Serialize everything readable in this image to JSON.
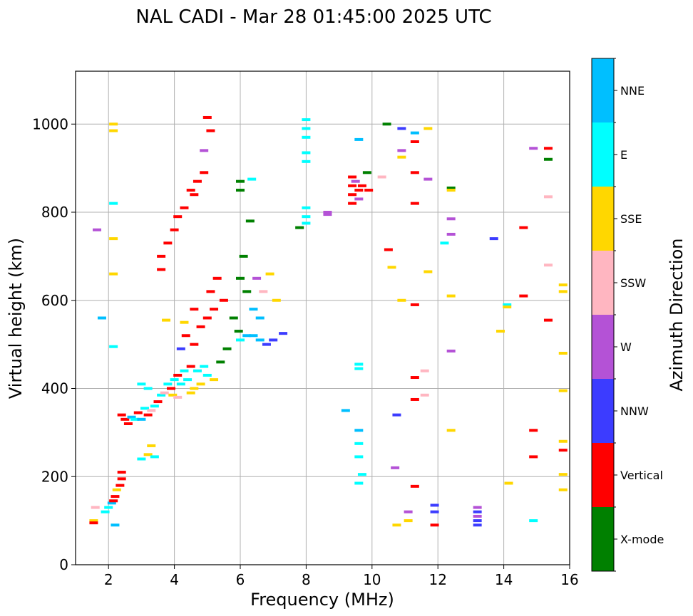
{
  "chart_data": {
    "type": "scatter",
    "title": "NAL CADI - Mar 28 01:45:00 2025 UTC",
    "xlabel": "Frequency (MHz)",
    "ylabel": "Virtual height (km)",
    "xlim": [
      1,
      16
    ],
    "ylim": [
      0,
      1120
    ],
    "xticks": [
      2,
      4,
      6,
      8,
      10,
      12,
      14,
      16
    ],
    "yticks": [
      0,
      200,
      400,
      600,
      800,
      1000
    ],
    "grid": true,
    "colorbar": {
      "label": "Azimuth Direction",
      "categories": [
        {
          "name": "X-mode",
          "color": "#008000"
        },
        {
          "name": "Vertical",
          "color": "#ff0000"
        },
        {
          "name": "NNW",
          "color": "#3c3cff"
        },
        {
          "name": "W",
          "color": "#b452d6"
        },
        {
          "name": "SSW",
          "color": "#ffb6c1"
        },
        {
          "name": "SSE",
          "color": "#ffd700"
        },
        {
          "name": "E",
          "color": "#00ffff"
        },
        {
          "name": "NNE",
          "color": "#00bfff"
        }
      ]
    },
    "points": [
      {
        "f": 1.55,
        "h": 100,
        "dir": "SSE"
      },
      {
        "f": 1.55,
        "h": 95,
        "dir": "Vertical"
      },
      {
        "f": 1.6,
        "h": 130,
        "dir": "SSW"
      },
      {
        "f": 1.65,
        "h": 760,
        "dir": "W"
      },
      {
        "f": 1.9,
        "h": 120,
        "dir": "E"
      },
      {
        "f": 2.0,
        "h": 130,
        "dir": "E"
      },
      {
        "f": 2.1,
        "h": 140,
        "dir": "NNE"
      },
      {
        "f": 2.15,
        "h": 145,
        "dir": "Vertical"
      },
      {
        "f": 2.2,
        "h": 155,
        "dir": "Vertical"
      },
      {
        "f": 2.25,
        "h": 170,
        "dir": "SSE"
      },
      {
        "f": 2.35,
        "h": 180,
        "dir": "Vertical"
      },
      {
        "f": 2.4,
        "h": 195,
        "dir": "Vertical"
      },
      {
        "f": 2.4,
        "h": 210,
        "dir": "Vertical"
      },
      {
        "f": 2.15,
        "h": 1000,
        "dir": "SSE"
      },
      {
        "f": 2.15,
        "h": 985,
        "dir": "SSE"
      },
      {
        "f": 2.15,
        "h": 820,
        "dir": "E"
      },
      {
        "f": 2.15,
        "h": 740,
        "dir": "SSE"
      },
      {
        "f": 2.15,
        "h": 660,
        "dir": "SSE"
      },
      {
        "f": 2.15,
        "h": 495,
        "dir": "E"
      },
      {
        "f": 2.2,
        "h": 90,
        "dir": "NNE"
      },
      {
        "f": 2.4,
        "h": 340,
        "dir": "Vertical"
      },
      {
        "f": 2.5,
        "h": 330,
        "dir": "Vertical"
      },
      {
        "f": 2.6,
        "h": 320,
        "dir": "Vertical"
      },
      {
        "f": 2.7,
        "h": 335,
        "dir": "NNE"
      },
      {
        "f": 2.8,
        "h": 330,
        "dir": "E"
      },
      {
        "f": 2.9,
        "h": 345,
        "dir": "Vertical"
      },
      {
        "f": 3.0,
        "h": 330,
        "dir": "NNE"
      },
      {
        "f": 3.1,
        "h": 355,
        "dir": "E"
      },
      {
        "f": 3.2,
        "h": 340,
        "dir": "Vertical"
      },
      {
        "f": 3.3,
        "h": 350,
        "dir": "SSW"
      },
      {
        "f": 3.4,
        "h": 360,
        "dir": "E"
      },
      {
        "f": 3.5,
        "h": 370,
        "dir": "Vertical"
      },
      {
        "f": 3.6,
        "h": 385,
        "dir": "E"
      },
      {
        "f": 3.7,
        "h": 390,
        "dir": "SSW"
      },
      {
        "f": 3.0,
        "h": 410,
        "dir": "E"
      },
      {
        "f": 3.2,
        "h": 400,
        "dir": "E"
      },
      {
        "f": 3.0,
        "h": 240,
        "dir": "E"
      },
      {
        "f": 3.2,
        "h": 250,
        "dir": "SSE"
      },
      {
        "f": 3.3,
        "h": 270,
        "dir": "SSE"
      },
      {
        "f": 3.4,
        "h": 245,
        "dir": "E"
      },
      {
        "f": 3.8,
        "h": 410,
        "dir": "E"
      },
      {
        "f": 3.9,
        "h": 400,
        "dir": "Vertical"
      },
      {
        "f": 4.0,
        "h": 420,
        "dir": "E"
      },
      {
        "f": 4.1,
        "h": 430,
        "dir": "Vertical"
      },
      {
        "f": 4.2,
        "h": 410,
        "dir": "E"
      },
      {
        "f": 4.3,
        "h": 440,
        "dir": "E"
      },
      {
        "f": 4.4,
        "h": 420,
        "dir": "E"
      },
      {
        "f": 4.5,
        "h": 450,
        "dir": "Vertical"
      },
      {
        "f": 4.6,
        "h": 400,
        "dir": "SSE"
      },
      {
        "f": 4.7,
        "h": 440,
        "dir": "E"
      },
      {
        "f": 4.8,
        "h": 410,
        "dir": "SSE"
      },
      {
        "f": 4.9,
        "h": 450,
        "dir": "E"
      },
      {
        "f": 5.0,
        "h": 430,
        "dir": "E"
      },
      {
        "f": 3.95,
        "h": 385,
        "dir": "SSE"
      },
      {
        "f": 4.1,
        "h": 380,
        "dir": "SSW"
      },
      {
        "f": 4.5,
        "h": 390,
        "dir": "SSE"
      },
      {
        "f": 5.2,
        "h": 420,
        "dir": "SSE"
      },
      {
        "f": 5.4,
        "h": 460,
        "dir": "X-mode"
      },
      {
        "f": 5.6,
        "h": 490,
        "dir": "X-mode"
      },
      {
        "f": 4.2,
        "h": 490,
        "dir": "NNW"
      },
      {
        "f": 4.35,
        "h": 520,
        "dir": "Vertical"
      },
      {
        "f": 4.6,
        "h": 500,
        "dir": "Vertical"
      },
      {
        "f": 4.8,
        "h": 540,
        "dir": "Vertical"
      },
      {
        "f": 5.0,
        "h": 560,
        "dir": "Vertical"
      },
      {
        "f": 5.1,
        "h": 620,
        "dir": "Vertical"
      },
      {
        "f": 5.2,
        "h": 580,
        "dir": "Vertical"
      },
      {
        "f": 5.3,
        "h": 650,
        "dir": "Vertical"
      },
      {
        "f": 5.5,
        "h": 600,
        "dir": "Vertical"
      },
      {
        "f": 5.8,
        "h": 560,
        "dir": "X-mode"
      },
      {
        "f": 5.95,
        "h": 530,
        "dir": "X-mode"
      },
      {
        "f": 6.0,
        "h": 510,
        "dir": "E"
      },
      {
        "f": 6.2,
        "h": 520,
        "dir": "NNE"
      },
      {
        "f": 6.4,
        "h": 520,
        "dir": "NNE"
      },
      {
        "f": 6.6,
        "h": 510,
        "dir": "NNE"
      },
      {
        "f": 6.8,
        "h": 500,
        "dir": "NNW"
      },
      {
        "f": 7.0,
        "h": 510,
        "dir": "NNW"
      },
      {
        "f": 7.3,
        "h": 525,
        "dir": "NNW"
      },
      {
        "f": 6.0,
        "h": 650,
        "dir": "X-mode"
      },
      {
        "f": 6.2,
        "h": 620,
        "dir": "X-mode"
      },
      {
        "f": 6.1,
        "h": 700,
        "dir": "X-mode"
      },
      {
        "f": 6.3,
        "h": 780,
        "dir": "X-mode"
      },
      {
        "f": 6.5,
        "h": 650,
        "dir": "W"
      },
      {
        "f": 6.7,
        "h": 620,
        "dir": "SSW"
      },
      {
        "f": 6.9,
        "h": 660,
        "dir": "SSE"
      },
      {
        "f": 7.1,
        "h": 600,
        "dir": "SSE"
      },
      {
        "f": 6.4,
        "h": 580,
        "dir": "NNE"
      },
      {
        "f": 6.6,
        "h": 560,
        "dir": "NNE"
      },
      {
        "f": 6.35,
        "h": 875,
        "dir": "E"
      },
      {
        "f": 6.0,
        "h": 870,
        "dir": "X-mode"
      },
      {
        "f": 6.0,
        "h": 850,
        "dir": "X-mode"
      },
      {
        "f": 3.6,
        "h": 700,
        "dir": "Vertical"
      },
      {
        "f": 3.6,
        "h": 670,
        "dir": "Vertical"
      },
      {
        "f": 3.8,
        "h": 730,
        "dir": "Vertical"
      },
      {
        "f": 4.0,
        "h": 760,
        "dir": "Vertical"
      },
      {
        "f": 4.1,
        "h": 790,
        "dir": "Vertical"
      },
      {
        "f": 4.3,
        "h": 810,
        "dir": "Vertical"
      },
      {
        "f": 4.5,
        "h": 850,
        "dir": "Vertical"
      },
      {
        "f": 4.7,
        "h": 870,
        "dir": "Vertical"
      },
      {
        "f": 4.9,
        "h": 890,
        "dir": "Vertical"
      },
      {
        "f": 4.6,
        "h": 840,
        "dir": "Vertical"
      },
      {
        "f": 4.9,
        "h": 940,
        "dir": "W"
      },
      {
        "f": 5.1,
        "h": 985,
        "dir": "Vertical"
      },
      {
        "f": 5.0,
        "h": 1015,
        "dir": "Vertical"
      },
      {
        "f": 3.75,
        "h": 555,
        "dir": "SSE"
      },
      {
        "f": 4.3,
        "h": 550,
        "dir": "SSE"
      },
      {
        "f": 4.6,
        "h": 580,
        "dir": "Vertical"
      },
      {
        "f": 8.0,
        "h": 1010,
        "dir": "E"
      },
      {
        "f": 8.0,
        "h": 990,
        "dir": "E"
      },
      {
        "f": 8.0,
        "h": 970,
        "dir": "E"
      },
      {
        "f": 8.0,
        "h": 935,
        "dir": "E"
      },
      {
        "f": 8.0,
        "h": 915,
        "dir": "E"
      },
      {
        "f": 8.0,
        "h": 810,
        "dir": "E"
      },
      {
        "f": 8.0,
        "h": 790,
        "dir": "E"
      },
      {
        "f": 8.0,
        "h": 775,
        "dir": "E"
      },
      {
        "f": 7.8,
        "h": 765,
        "dir": "X-mode"
      },
      {
        "f": 8.65,
        "h": 800,
        "dir": "W"
      },
      {
        "f": 8.65,
        "h": 795,
        "dir": "W"
      },
      {
        "f": 9.4,
        "h": 880,
        "dir": "Vertical"
      },
      {
        "f": 9.4,
        "h": 860,
        "dir": "Vertical"
      },
      {
        "f": 9.4,
        "h": 840,
        "dir": "Vertical"
      },
      {
        "f": 9.4,
        "h": 820,
        "dir": "Vertical"
      },
      {
        "f": 9.5,
        "h": 870,
        "dir": "W"
      },
      {
        "f": 9.6,
        "h": 850,
        "dir": "Vertical"
      },
      {
        "f": 9.6,
        "h": 830,
        "dir": "W"
      },
      {
        "f": 9.7,
        "h": 860,
        "dir": "Vertical"
      },
      {
        "f": 9.85,
        "h": 890,
        "dir": "X-mode"
      },
      {
        "f": 9.9,
        "h": 850,
        "dir": "Vertical"
      },
      {
        "f": 9.6,
        "h": 965,
        "dir": "NNE"
      },
      {
        "f": 9.2,
        "h": 350,
        "dir": "NNE"
      },
      {
        "f": 9.6,
        "h": 455,
        "dir": "E"
      },
      {
        "f": 9.6,
        "h": 445,
        "dir": "E"
      },
      {
        "f": 9.6,
        "h": 305,
        "dir": "NNE"
      },
      {
        "f": 9.6,
        "h": 275,
        "dir": "E"
      },
      {
        "f": 9.6,
        "h": 245,
        "dir": "E"
      },
      {
        "f": 9.7,
        "h": 205,
        "dir": "E"
      },
      {
        "f": 9.6,
        "h": 185,
        "dir": "E"
      },
      {
        "f": 10.3,
        "h": 880,
        "dir": "SSW"
      },
      {
        "f": 10.45,
        "h": 1000,
        "dir": "X-mode"
      },
      {
        "f": 10.5,
        "h": 715,
        "dir": "Vertical"
      },
      {
        "f": 10.6,
        "h": 675,
        "dir": "SSE"
      },
      {
        "f": 10.75,
        "h": 340,
        "dir": "NNW"
      },
      {
        "f": 10.7,
        "h": 220,
        "dir": "W"
      },
      {
        "f": 10.75,
        "h": 90,
        "dir": "SSE"
      },
      {
        "f": 10.9,
        "h": 990,
        "dir": "NNW"
      },
      {
        "f": 10.9,
        "h": 940,
        "dir": "W"
      },
      {
        "f": 10.9,
        "h": 925,
        "dir": "SSE"
      },
      {
        "f": 10.9,
        "h": 600,
        "dir": "SSE"
      },
      {
        "f": 11.1,
        "h": 120,
        "dir": "W"
      },
      {
        "f": 11.1,
        "h": 100,
        "dir": "SSE"
      },
      {
        "f": 11.3,
        "h": 980,
        "dir": "NNE"
      },
      {
        "f": 11.3,
        "h": 960,
        "dir": "Vertical"
      },
      {
        "f": 11.3,
        "h": 890,
        "dir": "Vertical"
      },
      {
        "f": 11.3,
        "h": 820,
        "dir": "Vertical"
      },
      {
        "f": 11.3,
        "h": 590,
        "dir": "Vertical"
      },
      {
        "f": 11.3,
        "h": 425,
        "dir": "Vertical"
      },
      {
        "f": 11.3,
        "h": 375,
        "dir": "Vertical"
      },
      {
        "f": 11.3,
        "h": 178,
        "dir": "Vertical"
      },
      {
        "f": 11.6,
        "h": 440,
        "dir": "SSW"
      },
      {
        "f": 11.6,
        "h": 385,
        "dir": "SSW"
      },
      {
        "f": 11.7,
        "h": 990,
        "dir": "SSE"
      },
      {
        "f": 11.7,
        "h": 875,
        "dir": "W"
      },
      {
        "f": 11.7,
        "h": 665,
        "dir": "SSE"
      },
      {
        "f": 11.9,
        "h": 135,
        "dir": "NNW"
      },
      {
        "f": 11.9,
        "h": 120,
        "dir": "NNW"
      },
      {
        "f": 11.9,
        "h": 90,
        "dir": "Vertical"
      },
      {
        "f": 12.2,
        "h": 730,
        "dir": "E"
      },
      {
        "f": 12.4,
        "h": 855,
        "dir": "X-mode"
      },
      {
        "f": 12.4,
        "h": 850,
        "dir": "SSE"
      },
      {
        "f": 12.4,
        "h": 785,
        "dir": "W"
      },
      {
        "f": 12.4,
        "h": 750,
        "dir": "W"
      },
      {
        "f": 12.4,
        "h": 610,
        "dir": "SSE"
      },
      {
        "f": 12.4,
        "h": 485,
        "dir": "W"
      },
      {
        "f": 12.4,
        "h": 305,
        "dir": "SSE"
      },
      {
        "f": 13.2,
        "h": 130,
        "dir": "W"
      },
      {
        "f": 13.2,
        "h": 120,
        "dir": "NNW"
      },
      {
        "f": 13.2,
        "h": 110,
        "dir": "W"
      },
      {
        "f": 13.2,
        "h": 100,
        "dir": "NNW"
      },
      {
        "f": 13.2,
        "h": 90,
        "dir": "NNW"
      },
      {
        "f": 13.7,
        "h": 740,
        "dir": "NNW"
      },
      {
        "f": 13.9,
        "h": 530,
        "dir": "SSE"
      },
      {
        "f": 14.1,
        "h": 590,
        "dir": "E"
      },
      {
        "f": 14.1,
        "h": 585,
        "dir": "SSE"
      },
      {
        "f": 14.15,
        "h": 185,
        "dir": "SSE"
      },
      {
        "f": 14.6,
        "h": 765,
        "dir": "Vertical"
      },
      {
        "f": 14.6,
        "h": 610,
        "dir": "Vertical"
      },
      {
        "f": 14.9,
        "h": 945,
        "dir": "W"
      },
      {
        "f": 14.9,
        "h": 305,
        "dir": "Vertical"
      },
      {
        "f": 14.9,
        "h": 245,
        "dir": "Vertical"
      },
      {
        "f": 14.9,
        "h": 100,
        "dir": "E"
      },
      {
        "f": 15.35,
        "h": 945,
        "dir": "Vertical"
      },
      {
        "f": 15.35,
        "h": 920,
        "dir": "X-mode"
      },
      {
        "f": 15.35,
        "h": 835,
        "dir": "SSW"
      },
      {
        "f": 15.35,
        "h": 680,
        "dir": "SSW"
      },
      {
        "f": 15.35,
        "h": 555,
        "dir": "Vertical"
      },
      {
        "f": 15.8,
        "h": 635,
        "dir": "SSE"
      },
      {
        "f": 15.8,
        "h": 620,
        "dir": "SSE"
      },
      {
        "f": 15.8,
        "h": 480,
        "dir": "SSE"
      },
      {
        "f": 15.8,
        "h": 395,
        "dir": "SSE"
      },
      {
        "f": 15.8,
        "h": 280,
        "dir": "SSE"
      },
      {
        "f": 15.8,
        "h": 260,
        "dir": "Vertical"
      },
      {
        "f": 15.8,
        "h": 205,
        "dir": "SSE"
      },
      {
        "f": 15.8,
        "h": 170,
        "dir": "SSE"
      },
      {
        "f": 1.8,
        "h": 560,
        "dir": "NNE"
      }
    ]
  }
}
